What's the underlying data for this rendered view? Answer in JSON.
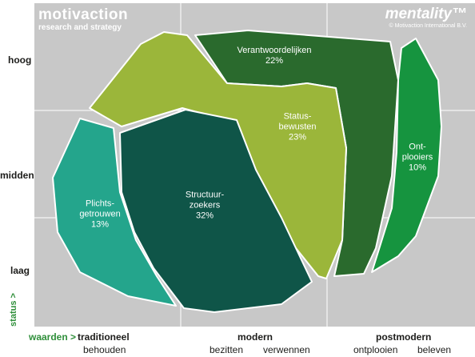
{
  "brand_left": {
    "name": "motivaction",
    "tagline": "research and strategy"
  },
  "brand_right": {
    "name": "mentality™",
    "copyright": "© Motivaction International B.V."
  },
  "y_axis": {
    "title": "status >",
    "levels": [
      "hoog",
      "midden",
      "laag"
    ]
  },
  "x_axis": {
    "title": "waarden >",
    "groups": [
      {
        "label": "traditioneel",
        "sub": [
          "behouden"
        ]
      },
      {
        "label": "modern",
        "sub": [
          "bezitten",
          "verwennen"
        ]
      },
      {
        "label": "postmodern",
        "sub": [
          "ontplooien",
          "beleven"
        ]
      }
    ]
  },
  "colors": {
    "background": "#c8c8c8",
    "gridlines": "#ffffff",
    "axis_title": "#2f8f3a",
    "verantwoordelijken": "#2a6a2d",
    "statusbewusten": "#9bb63a",
    "ontplooiers": "#16943f",
    "structuurzoekers": "#0f5548",
    "plichtsgetrouwen": "#24a58c"
  },
  "chart_data": {
    "type": "segment-map",
    "segments": [
      {
        "name": "Verantwoordelijken",
        "label": "Verantwoordelijken\n22%",
        "share_pct": 22,
        "color": "#2a6a2d"
      },
      {
        "name": "Status-bewusten",
        "label": "Status-\nbewusten\n23%",
        "share_pct": 23,
        "color": "#9bb63a"
      },
      {
        "name": "Ont-plooiers",
        "label": "Ont-\nplooiers\n10%",
        "share_pct": 10,
        "color": "#16943f"
      },
      {
        "name": "Structuur-zoekers",
        "label": "Structuur-\nzoekers\n32%",
        "share_pct": 32,
        "color": "#0f5548"
      },
      {
        "name": "Plichts-getrouwen",
        "label": "Plichts-\ngetrouwen\n13%",
        "share_pct": 13,
        "color": "#24a58c"
      }
    ]
  }
}
